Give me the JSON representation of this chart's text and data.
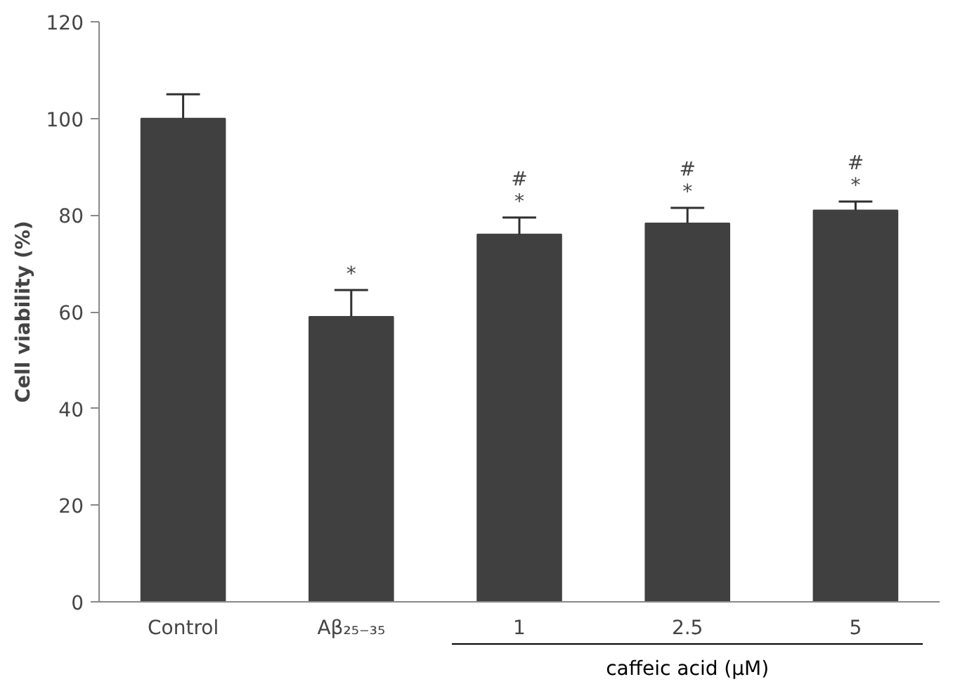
{
  "chart_data": {
    "type": "bar",
    "ylabel": "Cell viability (%)",
    "categories": [
      "Control",
      "Aβ₂₅₋₃₅",
      "1",
      "2.5",
      "5"
    ],
    "values": [
      100,
      59,
      76,
      78.3,
      81
    ],
    "errors": [
      [
        100,
        105
      ],
      [
        59,
        64.5
      ],
      [
        76,
        79.5
      ],
      [
        78.3,
        81.5
      ],
      [
        81,
        82.8
      ]
    ],
    "color": "#404040",
    "ylim": [
      0,
      120
    ],
    "yticks": [
      0,
      20,
      40,
      60,
      80,
      100,
      120
    ],
    "grid": false,
    "annotations": [
      {
        "text": "*",
        "x": "Aβ₂₅₋₃₅",
        "y": 64.5
      },
      {
        "text": "#\n*",
        "x": "1",
        "y": 79.5
      },
      {
        "text": "#\n*",
        "x": "2.5",
        "y": 81.5
      },
      {
        "text": "#\n*",
        "x": "5",
        "y": 82.8
      },
      "caffeic acid (μM)"
    ]
  }
}
